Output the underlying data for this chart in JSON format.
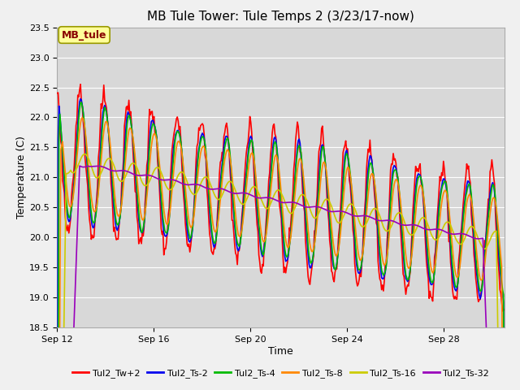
{
  "title": "MB Tule Tower: Tule Temps 2 (3/23/17-now)",
  "xlabel": "Time",
  "ylabel": "Temperature (C)",
  "ylim": [
    18.5,
    23.5
  ],
  "yticks": [
    18.5,
    19.0,
    19.5,
    20.0,
    20.5,
    21.0,
    21.5,
    22.0,
    22.5,
    23.0,
    23.5
  ],
  "xtick_positions": [
    0,
    4,
    8,
    12,
    16
  ],
  "xtick_labels": [
    "Sep 12",
    "Sep 16",
    "Sep 20",
    "Sep 24",
    "Sep 28"
  ],
  "xlim": [
    0,
    18.5
  ],
  "plot_bg_color": "#d8d8d8",
  "fig_bg_color": "#f0f0f0",
  "annotation_text": "MB_tule",
  "annotation_facecolor": "#ffff99",
  "annotation_edgecolor": "#999900",
  "annotation_textcolor": "#880000",
  "legend_entries": [
    "Tul2_Tw+2",
    "Tul2_Ts-2",
    "Tul2_Ts-4",
    "Tul2_Ts-8",
    "Tul2_Ts-16",
    "Tul2_Ts-32"
  ],
  "line_colors": [
    "#ff0000",
    "#0000ee",
    "#00bb00",
    "#ff8800",
    "#cccc00",
    "#9900bb"
  ],
  "line_width": 1.2,
  "title_fontsize": 11,
  "axis_label_fontsize": 9,
  "tick_fontsize": 8,
  "legend_fontsize": 8
}
